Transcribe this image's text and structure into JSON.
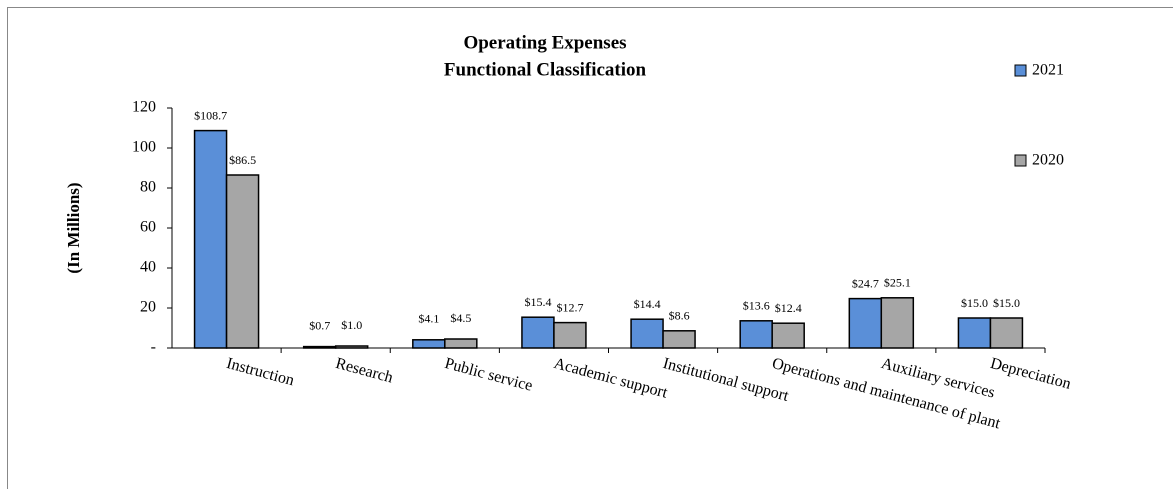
{
  "chart_data": {
    "type": "bar",
    "title": "Operating Expenses",
    "subtitle": "Functional Classification",
    "y_label": "(In Millions)",
    "categories": [
      "Instruction",
      "Research",
      "Public service",
      "Academic support",
      "Institutional support",
      "Operations and maintenance of plant",
      "Auxiliary services",
      "Depreciation"
    ],
    "series": [
      {
        "name": "2021",
        "color": "#5a8fd8",
        "values": [
          108.7,
          0.7,
          4.1,
          15.4,
          14.4,
          13.6,
          24.7,
          15.0
        ],
        "value_labels": [
          "$108.7",
          "$0.7",
          "$4.1",
          "$15.4",
          "$14.4",
          "$13.6",
          "$24.7",
          "$15.0"
        ]
      },
      {
        "name": "2020",
        "color": "#a6a6a6",
        "values": [
          86.5,
          1.0,
          4.5,
          12.7,
          8.6,
          12.4,
          25.1,
          15.0
        ],
        "value_labels": [
          "$86.5",
          "$1.0",
          "$4.5",
          "$12.7",
          "$8.6",
          "$12.4",
          "$25.1",
          "$15.0"
        ]
      }
    ],
    "ylim": [
      0,
      120
    ],
    "yticks": [
      {
        "value": 0,
        "label": "-"
      },
      20,
      40,
      60,
      80,
      100,
      120
    ],
    "legend": "right"
  }
}
